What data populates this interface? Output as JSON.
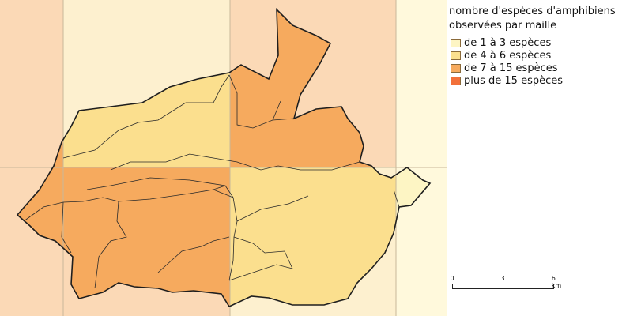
{
  "legend": {
    "title_line1": "nombre d'espèces d'amphibiens",
    "title_line2": "observées par maille",
    "items": [
      {
        "label": "de 1 à 3 espèces",
        "color": "#fdf5c4"
      },
      {
        "label": "de 4 à 6 espèces",
        "color": "#fbdf8e"
      },
      {
        "label": "de 7 à 15 espèces",
        "color": "#f6aa5e"
      },
      {
        "label": "plus de 15 espèces",
        "color": "#f2703a"
      }
    ]
  },
  "scale": {
    "labels": [
      "0",
      "3",
      "6 km"
    ]
  },
  "colors": {
    "grid_class_1_bg": "#fff9dc",
    "grid_class_2_bg": "#fdf0cf",
    "grid_class_3_bg": "#fbd9b6",
    "grid_line": "#c8b89a",
    "commune_border": "#2a2a2a"
  }
}
